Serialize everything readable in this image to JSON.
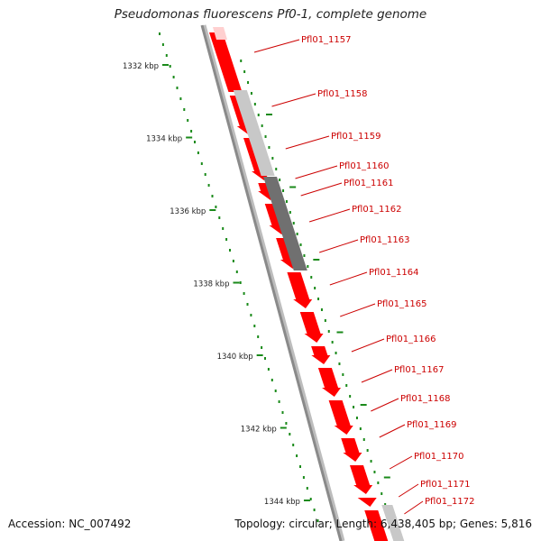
{
  "title": "Pseudomonas fluorescens Pf0-1, complete genome",
  "accession_text": "Accession: NC_007492",
  "summary_text": "Topology: circular; Length: 6,438,405 bp; Genes: 5,816",
  "colors": {
    "gene_forward": "#ff0000",
    "gene_light_gray": "#c8c8c8",
    "gene_dark_gray": "#707070",
    "tick": "#1a8a1a",
    "backbone": "#8a8a8a",
    "label": "#cc0000"
  },
  "scale_labels": [
    {
      "kbp": 1332,
      "text": "1332 kbp"
    },
    {
      "kbp": 1334,
      "text": "1334 kbp"
    },
    {
      "kbp": 1336,
      "text": "1336 kbp"
    },
    {
      "kbp": 1338,
      "text": "1338 kbp"
    },
    {
      "kbp": 1340,
      "text": "1340 kbp"
    },
    {
      "kbp": 1342,
      "text": "1342 kbp"
    },
    {
      "kbp": 1344,
      "text": "1344 kbp"
    }
  ],
  "genes": [
    {
      "label": "Pfl01_1157"
    },
    {
      "label": "Pfl01_1158"
    },
    {
      "label": "Pfl01_1159"
    },
    {
      "label": "Pfl01_1160"
    },
    {
      "label": "Pfl01_1161"
    },
    {
      "label": "Pfl01_1162"
    },
    {
      "label": "Pfl01_1163"
    },
    {
      "label": "Pfl01_1164"
    },
    {
      "label": "Pfl01_1165"
    },
    {
      "label": "Pfl01_1166"
    },
    {
      "label": "Pfl01_1167"
    },
    {
      "label": "Pfl01_1168"
    },
    {
      "label": "Pfl01_1169"
    },
    {
      "label": "Pfl01_1170"
    },
    {
      "label": "Pfl01_1171"
    },
    {
      "label": "Pfl01_1172"
    }
  ]
}
